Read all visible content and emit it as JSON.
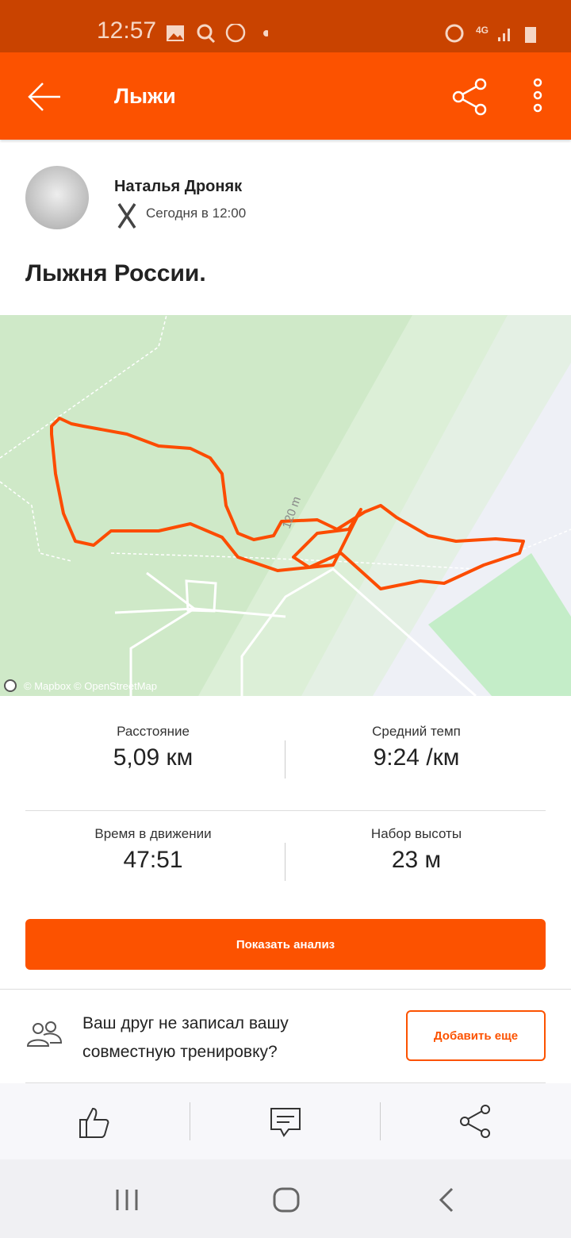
{
  "status_bar": {
    "time": "12:57",
    "network": "4G"
  },
  "app_bar": {
    "title": "Лыжи"
  },
  "athlete": {
    "name": "Наталья Дроняк",
    "date": "Сегодня в 12:00"
  },
  "activity": {
    "title": "Лыжня России.",
    "map_label": "120 m",
    "attribution": "© Mapbox © OpenStreetMap"
  },
  "stats": [
    {
      "label": "Расстояние",
      "value": "5,09 км"
    },
    {
      "label": "Средний темп",
      "value": "9:24 /км"
    },
    {
      "label": "Время в движении",
      "value": "47:51"
    },
    {
      "label": "Набор высоты",
      "value": "23 м"
    }
  ],
  "analysis_button": "Показать анализ",
  "friend": {
    "line1": "Ваш друг не записал вашу",
    "line2": "совместную тренировку?",
    "button": "Добавить еще"
  },
  "colors": {
    "accent": "#fc5200",
    "status_bar": "#c94300"
  }
}
